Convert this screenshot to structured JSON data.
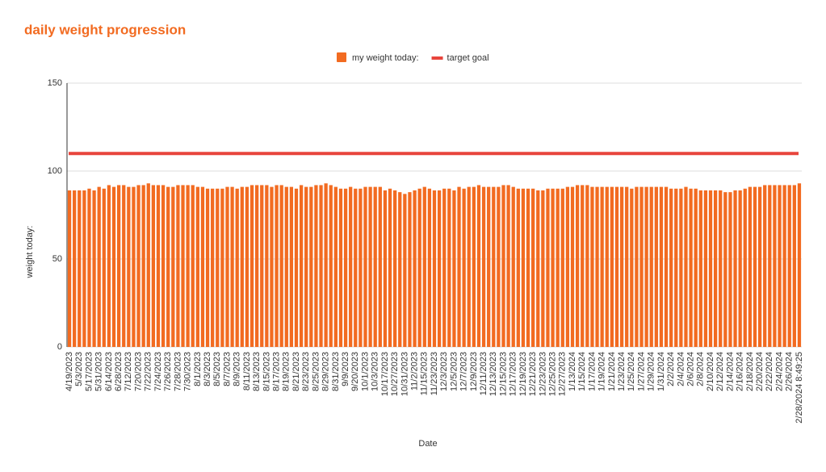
{
  "chart_data": {
    "type": "bar",
    "title": "daily weight progression",
    "x_label": "Date",
    "y_label": "weight today:",
    "categories": [
      "4/19/2023",
      null,
      "5/3/2023",
      null,
      "5/17/2023",
      null,
      "5/31/2023",
      null,
      "6/14/2023",
      null,
      "6/28/2023",
      null,
      "7/12/2023",
      null,
      "7/20/2023",
      null,
      "7/22/2023",
      null,
      "7/24/2023",
      null,
      "7/26/2023",
      null,
      "7/28/2023",
      null,
      "7/30/2023",
      null,
      "8/1/2023",
      null,
      "8/3/2023",
      null,
      "8/5/2023",
      null,
      "8/7/2023",
      null,
      "8/9/2023",
      null,
      "8/11/2023",
      null,
      "8/13/2023",
      null,
      "8/15/2023",
      null,
      "8/17/2023",
      null,
      "8/19/2023",
      null,
      "8/21/2023",
      null,
      "8/23/2023",
      null,
      "8/25/2023",
      null,
      "8/29/2023",
      null,
      "8/31/2023",
      null,
      "9/9/2023",
      null,
      "9/20/2023",
      null,
      "10/1/2023",
      null,
      "10/3/2023",
      null,
      "10/17/2023",
      null,
      "10/27/2023",
      null,
      "10/31/2023",
      null,
      "11/2/2023",
      null,
      "11/15/2023",
      null,
      "11/23/2023",
      null,
      "12/3/2023",
      null,
      "12/5/2023",
      null,
      "12/7/2023",
      null,
      "12/9/2023",
      null,
      "12/11/2023",
      null,
      "12/13/2023",
      null,
      "12/15/2023",
      null,
      "12/17/2023",
      null,
      "12/19/2023",
      null,
      "12/21/2023",
      null,
      "12/23/2023",
      null,
      "12/25/2023",
      null,
      "12/27/2023",
      null,
      "1/13/2024",
      null,
      "1/15/2024",
      null,
      "1/17/2024",
      null,
      "1/19/2024",
      null,
      "1/21/2024",
      null,
      "1/23/2024",
      null,
      "1/25/2024",
      null,
      "1/27/2024",
      null,
      "1/29/2024",
      null,
      "1/31/2024",
      null,
      "2/2/2024",
      null,
      "2/4/2024",
      null,
      "2/6/2024",
      null,
      "2/8/2024",
      null,
      "2/10/2024",
      null,
      "2/12/2024",
      null,
      "2/14/2024",
      null,
      "2/16/2024",
      null,
      "2/18/2024",
      null,
      "2/20/2024",
      null,
      "2/22/2024",
      null,
      "2/24/2024",
      null,
      "2/26/2024",
      null,
      "2/28/2024 8:49:25"
    ],
    "series": [
      {
        "name": "my weight today:",
        "color": "#f26b21",
        "values": [
          89,
          89,
          89,
          89,
          90,
          89,
          91,
          90,
          92,
          91,
          92,
          92,
          91,
          91,
          92,
          92,
          93,
          92,
          92,
          92,
          91,
          91,
          92,
          92,
          92,
          92,
          91,
          91,
          90,
          90,
          90,
          90,
          91,
          91,
          90,
          91,
          91,
          92,
          92,
          92,
          92,
          91,
          92,
          92,
          91,
          91,
          90,
          92,
          91,
          91,
          92,
          92,
          93,
          92,
          91,
          90,
          90,
          91,
          90,
          90,
          91,
          91,
          91,
          91,
          89,
          90,
          89,
          88,
          87,
          88,
          89,
          90,
          91,
          90,
          89,
          89,
          90,
          90,
          89,
          91,
          90,
          91,
          91,
          92,
          91,
          91,
          91,
          91,
          92,
          92,
          91,
          90,
          90,
          90,
          90,
          89,
          89,
          90,
          90,
          90,
          90,
          91,
          91,
          92,
          92,
          92,
          91,
          91,
          91,
          91,
          91,
          91,
          91,
          91,
          90,
          91,
          91,
          91,
          91,
          91,
          91,
          91,
          90,
          90,
          90,
          91,
          90,
          90,
          89,
          89,
          89,
          89,
          89,
          88,
          88,
          89,
          89,
          90,
          91,
          91,
          91,
          92,
          92,
          92,
          92,
          92,
          92,
          92,
          93
        ]
      },
      {
        "name": "target goal",
        "color": "#e8453c",
        "type": "line",
        "value": 110
      }
    ],
    "ylim": [
      0,
      150
    ],
    "yticks": [
      0,
      50,
      100,
      150
    ],
    "grid": true,
    "legend": "top"
  }
}
